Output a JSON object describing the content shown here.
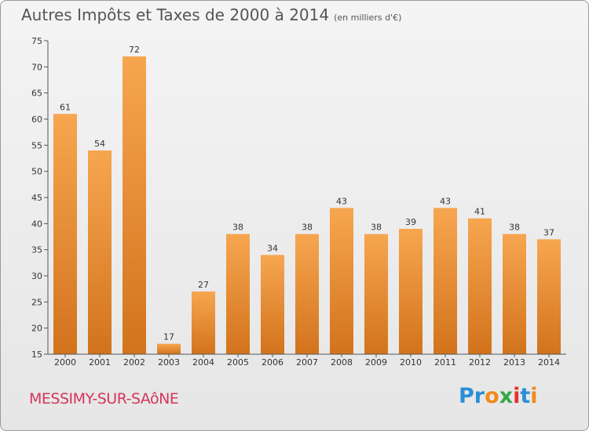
{
  "title": "Autres Impôts et Taxes de 2000 à 2014",
  "unit_note": "(en milliers d'€)",
  "city": "MESSIMY-SUR-SAôNE",
  "logo": {
    "text": "Proxiti",
    "letters": [
      {
        "ch": "P",
        "color": "#2a8fd6"
      },
      {
        "ch": "r",
        "color": "#2a8fd6"
      },
      {
        "ch": "o",
        "color": "#f08a1c"
      },
      {
        "ch": "x",
        "color": "#35a84a"
      },
      {
        "ch": "i",
        "color": "#e3322e"
      },
      {
        "ch": "t",
        "color": "#2a8fd6"
      },
      {
        "ch": "i",
        "color": "#f08a1c"
      }
    ]
  },
  "colors": {
    "bar_top": "#f7a650",
    "bar_bottom": "#d2731c",
    "city": "#d4365b"
  },
  "chart_data": {
    "type": "bar",
    "categories": [
      "2000",
      "2001",
      "2002",
      "2003",
      "2004",
      "2005",
      "2006",
      "2007",
      "2008",
      "2009",
      "2010",
      "2011",
      "2012",
      "2013",
      "2014"
    ],
    "values": [
      61,
      54,
      72,
      17,
      27,
      38,
      34,
      38,
      43,
      38,
      39,
      43,
      41,
      38,
      37
    ],
    "title": "Autres Impôts et Taxes de 2000 à 2014",
    "xlabel": "",
    "ylabel": "",
    "ylim": [
      15,
      75
    ],
    "yticks": [
      15,
      20,
      25,
      30,
      35,
      40,
      45,
      50,
      55,
      60,
      65,
      70,
      75
    ],
    "grid": false,
    "data_labels": true
  }
}
